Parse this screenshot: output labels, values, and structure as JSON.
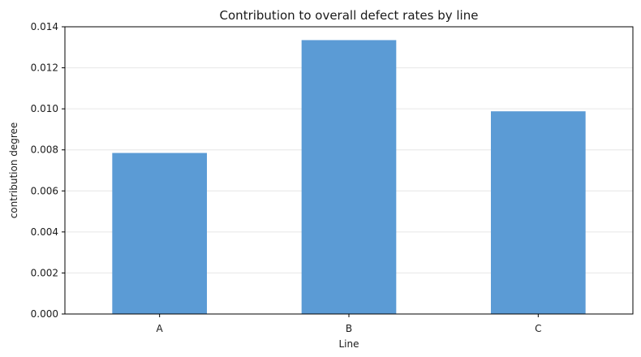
{
  "chart_data": {
    "type": "bar",
    "title": "Contribution to overall defect rates by line",
    "xlabel": "Line",
    "ylabel": "contribution degree",
    "categories": [
      "A",
      "B",
      "C"
    ],
    "values": [
      0.00785,
      0.01335,
      0.00988
    ],
    "ylim": [
      0,
      0.014
    ],
    "yticks": [
      "0.000",
      "0.002",
      "0.004",
      "0.006",
      "0.008",
      "0.010",
      "0.012",
      "0.014"
    ],
    "grid": true,
    "colors": {
      "bar": "#5b9bd5",
      "grid": "#e6e6e6",
      "frame": "#000000"
    }
  }
}
